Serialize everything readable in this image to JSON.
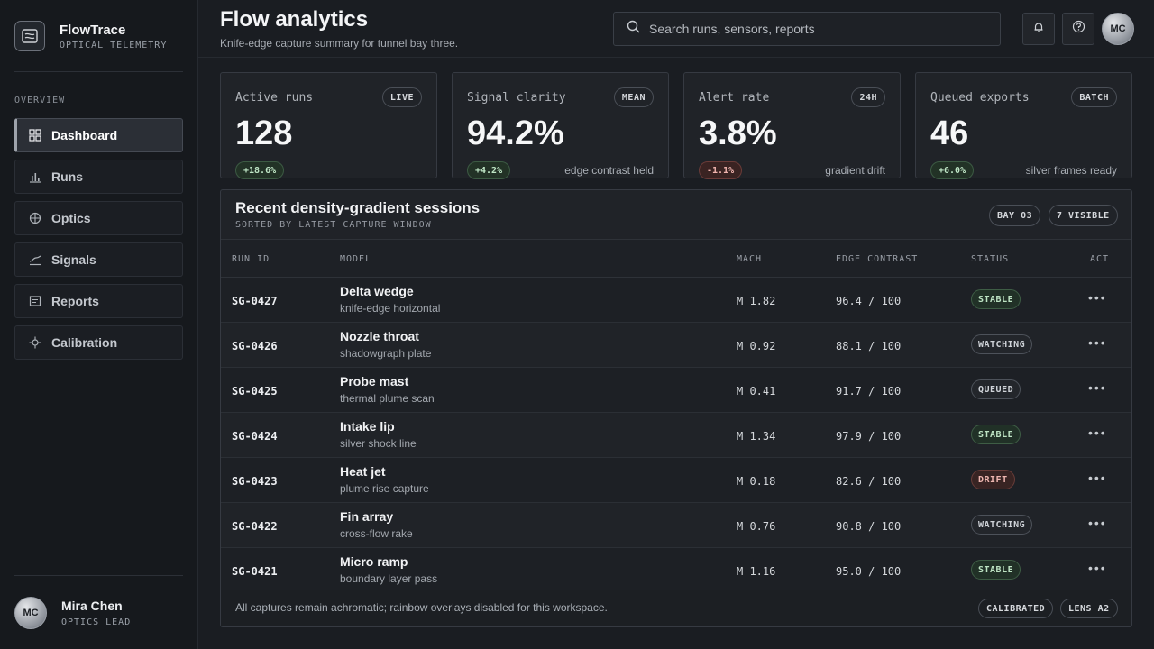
{
  "brand": {
    "name": "FlowTrace",
    "subtitle": "OPTICAL TELEMETRY",
    "icon": "window-frame-icon"
  },
  "sidebar": {
    "section": "OVERVIEW",
    "items": [
      {
        "label": "Dashboard",
        "icon": "grid-icon",
        "active": true
      },
      {
        "label": "Runs",
        "icon": "bar-chart-icon"
      },
      {
        "label": "Optics",
        "icon": "crosshair-circle-icon"
      },
      {
        "label": "Signals",
        "icon": "signal-curve-icon"
      },
      {
        "label": "Reports",
        "icon": "report-icon"
      },
      {
        "label": "Calibration",
        "icon": "target-icon"
      }
    ],
    "user": {
      "initials": "MC",
      "name": "Mira Chen",
      "role": "OPTICS LEAD"
    }
  },
  "header": {
    "title": "Flow analytics",
    "subtitle": "Knife-edge capture summary for tunnel bay three.",
    "search_placeholder": "Search runs, sensors, reports",
    "avatar_initials": "MC"
  },
  "kpis": [
    {
      "label": "Active runs",
      "tag": "LIVE",
      "value": "128",
      "delta": "+18.6%",
      "delta_type": "pos",
      "note": ""
    },
    {
      "label": "Signal clarity",
      "tag": "MEAN",
      "value": "94.2%",
      "delta": "+4.2%",
      "delta_type": "pos",
      "note": "edge contrast held"
    },
    {
      "label": "Alert rate",
      "tag": "24H",
      "value": "3.8%",
      "delta": "-1.1%",
      "delta_type": "neg",
      "note": "gradient drift"
    },
    {
      "label": "Queued exports",
      "tag": "BATCH",
      "value": "46",
      "delta": "+6.0%",
      "delta_type": "pos",
      "note": "silver frames ready"
    }
  ],
  "table": {
    "title": "Recent density-gradient sessions",
    "subtitle": "SORTED BY LATEST CAPTURE WINDOW",
    "chips": [
      "BAY 03",
      "7 VISIBLE"
    ],
    "columns": {
      "id": "RUN ID",
      "model": "MODEL",
      "mach": "MACH",
      "edge": "EDGE CONTRAST",
      "status": "STATUS",
      "act": "ACT"
    },
    "rows": [
      {
        "id": "SG-0427",
        "model": "Delta wedge",
        "sub": "knife-edge horizontal",
        "mach": "M 1.82",
        "edge": "96.4 / 100",
        "status": "STABLE"
      },
      {
        "id": "SG-0426",
        "model": "Nozzle throat",
        "sub": "shadowgraph plate",
        "mach": "M 0.92",
        "edge": "88.1 / 100",
        "status": "WATCHING"
      },
      {
        "id": "SG-0425",
        "model": "Probe mast",
        "sub": "thermal plume scan",
        "mach": "M 0.41",
        "edge": "91.7 / 100",
        "status": "QUEUED"
      },
      {
        "id": "SG-0424",
        "model": "Intake lip",
        "sub": "silver shock line",
        "mach": "M 1.34",
        "edge": "97.9 / 100",
        "status": "STABLE"
      },
      {
        "id": "SG-0423",
        "model": "Heat jet",
        "sub": "plume rise capture",
        "mach": "M 0.18",
        "edge": "82.6 / 100",
        "status": "DRIFT"
      },
      {
        "id": "SG-0422",
        "model": "Fin array",
        "sub": "cross-flow rake",
        "mach": "M 0.76",
        "edge": "90.8 / 100",
        "status": "WATCHING"
      },
      {
        "id": "SG-0421",
        "model": "Micro ramp",
        "sub": "boundary layer pass",
        "mach": "M 1.16",
        "edge": "95.0 / 100",
        "status": "STABLE"
      }
    ],
    "act_label": "•••",
    "footer": "All captures remain achromatic; rainbow overlays disabled for this workspace.",
    "footer_chips": [
      "CALIBRATED",
      "LENS A2"
    ]
  }
}
